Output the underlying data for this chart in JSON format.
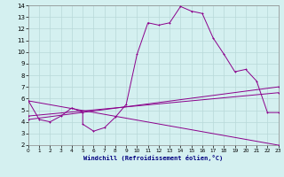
{
  "xlabel": "Windchill (Refroidissement éolien,°C)",
  "bg_color": "#d4f0f0",
  "line_color": "#8b008b",
  "grid_color": "#b8d8d8",
  "series": [
    [
      0,
      5.8
    ],
    [
      1,
      4.2
    ],
    [
      2,
      4.0
    ],
    [
      3,
      4.5
    ],
    [
      4,
      5.2
    ],
    [
      5,
      4.8
    ],
    [
      5,
      3.8
    ],
    [
      6,
      3.2
    ],
    [
      7,
      3.5
    ],
    [
      8,
      4.4
    ],
    [
      9,
      5.5
    ],
    [
      10,
      9.8
    ],
    [
      11,
      12.5
    ],
    [
      12,
      12.3
    ],
    [
      13,
      12.5
    ],
    [
      14,
      13.9
    ],
    [
      15,
      13.5
    ],
    [
      16,
      13.3
    ],
    [
      17,
      11.2
    ],
    [
      18,
      9.8
    ],
    [
      19,
      8.3
    ],
    [
      20,
      8.5
    ],
    [
      21,
      7.5
    ],
    [
      22,
      4.8
    ],
    [
      23,
      4.8
    ]
  ],
  "line2": [
    [
      0,
      5.8
    ],
    [
      23,
      2.0
    ]
  ],
  "line3": [
    [
      0,
      4.5
    ],
    [
      23,
      6.5
    ]
  ],
  "line4": [
    [
      0,
      4.2
    ],
    [
      23,
      7.0
    ]
  ],
  "ylim": [
    2,
    14
  ],
  "xlim": [
    0,
    23
  ],
  "yticks": [
    2,
    3,
    4,
    5,
    6,
    7,
    8,
    9,
    10,
    11,
    12,
    13,
    14
  ],
  "xticks": [
    0,
    1,
    2,
    3,
    4,
    5,
    6,
    7,
    8,
    9,
    10,
    11,
    12,
    13,
    14,
    15,
    16,
    17,
    18,
    19,
    20,
    21,
    22,
    23
  ],
  "xlabel_color": "#000080",
  "xlabel_fontsize": 5.0,
  "ytick_fontsize": 5.0,
  "xtick_fontsize": 4.2
}
